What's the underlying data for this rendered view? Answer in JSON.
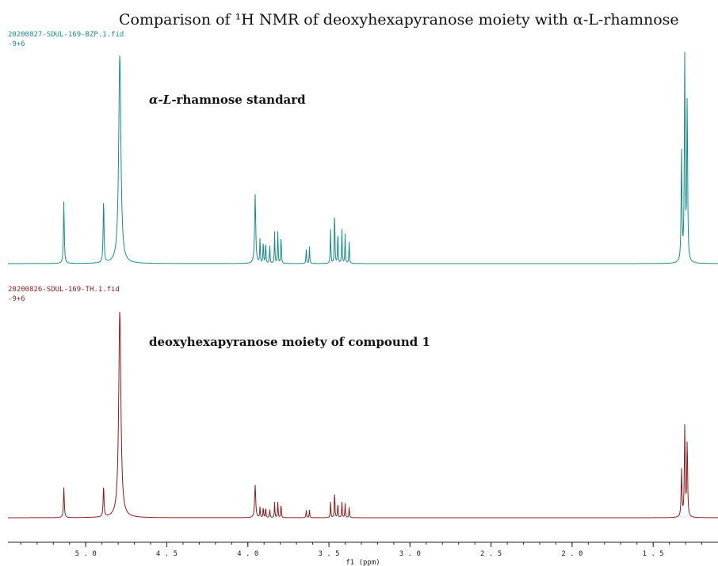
{
  "chart_data": {
    "type": "line",
    "title": "Comparison of ¹H NMR of deoxyhexapyranose moiety with α-L-rhamnose",
    "xlabel": "f1  (ppm)",
    "xlim": [
      5.48,
      1.1
    ],
    "x_reversed": true,
    "x_ticks": [
      "5.0",
      "4.5",
      "4.0",
      "3.5",
      "3.0",
      "2.5",
      "2.0",
      "1.5"
    ],
    "x_tick_values": [
      5.0,
      4.5,
      4.0,
      3.5,
      3.0,
      2.5,
      2.0,
      1.5
    ],
    "grid": false,
    "series": [
      {
        "name": "20200827-SDUL-169-BZP.1.fid",
        "scale": "-9+6",
        "annotation": "α-L-rhamnose standard",
        "color": "#1a8c86",
        "peaks": [
          {
            "x": 5.135,
            "h": 0.3,
            "w": 0.003
          },
          {
            "x": 4.89,
            "h": 0.31,
            "w": 0.003
          },
          {
            "x": 4.79,
            "h": 1.0,
            "w": 0.008
          },
          {
            "x": 3.955,
            "h": 0.33,
            "w": 0.004
          },
          {
            "x": 3.925,
            "h": 0.12,
            "w": 0.002
          },
          {
            "x": 3.905,
            "h": 0.11,
            "w": 0.002
          },
          {
            "x": 3.89,
            "h": 0.11,
            "w": 0.002
          },
          {
            "x": 3.865,
            "h": 0.09,
            "w": 0.002
          },
          {
            "x": 3.835,
            "h": 0.15,
            "w": 0.002
          },
          {
            "x": 3.815,
            "h": 0.16,
            "w": 0.002
          },
          {
            "x": 3.795,
            "h": 0.14,
            "w": 0.002
          },
          {
            "x": 3.64,
            "h": 0.07,
            "w": 0.002
          },
          {
            "x": 3.62,
            "h": 0.08,
            "w": 0.002
          },
          {
            "x": 3.49,
            "h": 0.17,
            "w": 0.002
          },
          {
            "x": 3.465,
            "h": 0.27,
            "w": 0.002
          },
          {
            "x": 3.445,
            "h": 0.16,
            "w": 0.002
          },
          {
            "x": 3.42,
            "h": 0.17,
            "w": 0.002
          },
          {
            "x": 3.4,
            "h": 0.14,
            "w": 0.002
          },
          {
            "x": 3.375,
            "h": 0.11,
            "w": 0.002
          },
          {
            "x": 1.325,
            "h": 0.52,
            "w": 0.003
          },
          {
            "x": 1.305,
            "h": 0.98,
            "w": 0.003
          },
          {
            "x": 1.29,
            "h": 0.78,
            "w": 0.003
          }
        ]
      },
      {
        "name": "20200826-SDUL-169-TH.1.fid",
        "scale": "-9+6",
        "annotation": "deoxyhexapyranose moiety of compound 1",
        "color": "#8b1c1c",
        "peaks": [
          {
            "x": 5.135,
            "h": 0.28,
            "w": 0.003
          },
          {
            "x": 4.89,
            "h": 0.29,
            "w": 0.003
          },
          {
            "x": 4.79,
            "h": 1.9,
            "w": 0.008
          },
          {
            "x": 3.955,
            "h": 0.3,
            "w": 0.004
          },
          {
            "x": 3.925,
            "h": 0.1,
            "w": 0.002
          },
          {
            "x": 3.905,
            "h": 0.1,
            "w": 0.002
          },
          {
            "x": 3.89,
            "h": 0.1,
            "w": 0.002
          },
          {
            "x": 3.865,
            "h": 0.08,
            "w": 0.002
          },
          {
            "x": 3.835,
            "h": 0.14,
            "w": 0.002
          },
          {
            "x": 3.815,
            "h": 0.15,
            "w": 0.002
          },
          {
            "x": 3.795,
            "h": 0.13,
            "w": 0.002
          },
          {
            "x": 3.64,
            "h": 0.07,
            "w": 0.002
          },
          {
            "x": 3.62,
            "h": 0.07,
            "w": 0.002
          },
          {
            "x": 3.49,
            "h": 0.15,
            "w": 0.002
          },
          {
            "x": 3.465,
            "h": 0.26,
            "w": 0.002
          },
          {
            "x": 3.445,
            "h": 0.14,
            "w": 0.002
          },
          {
            "x": 3.42,
            "h": 0.15,
            "w": 0.002
          },
          {
            "x": 3.4,
            "h": 0.13,
            "w": 0.002
          },
          {
            "x": 3.375,
            "h": 0.1,
            "w": 0.002
          },
          {
            "x": 1.325,
            "h": 0.43,
            "w": 0.003
          },
          {
            "x": 1.305,
            "h": 0.83,
            "w": 0.003
          },
          {
            "x": 1.29,
            "h": 0.69,
            "w": 0.003
          }
        ]
      }
    ]
  }
}
